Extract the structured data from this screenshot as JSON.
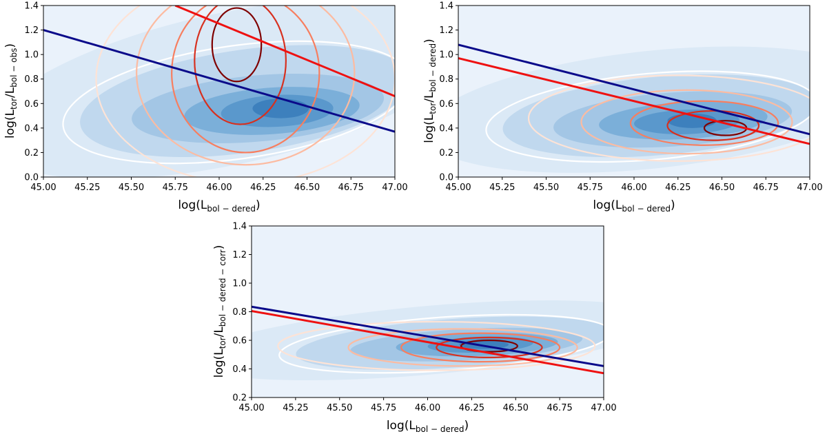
{
  "chart_data": [
    {
      "type": "contour",
      "panel": "top-left",
      "xlabel": {
        "main": "log(L",
        "sub": "bol − dered",
        "close": ")"
      },
      "ylabel": {
        "main": "log(L",
        "sub1": "tor",
        "mid": "/L",
        "sub2": "bol − obs",
        "close": ")"
      },
      "xlim": [
        45.0,
        47.0
      ],
      "ylim": [
        0.0,
        1.4
      ],
      "xticks": [
        "45.00",
        "45.25",
        "45.50",
        "45.75",
        "46.00",
        "46.25",
        "46.50",
        "46.75",
        "47.00"
      ],
      "yticks": [
        "0.0",
        "0.2",
        "0.4",
        "0.6",
        "0.8",
        "1.0",
        "1.2",
        "1.4"
      ],
      "series": [
        {
          "name": "blue fit line",
          "color": "#0a0a8a",
          "x": [
            45.0,
            47.0
          ],
          "y": [
            1.2,
            0.37
          ]
        },
        {
          "name": "red fit line",
          "color": "#ee1111",
          "x": [
            45.75,
            47.0
          ],
          "y": [
            1.4,
            0.66
          ]
        }
      ],
      "blue_density_center": [
        46.35,
        0.55
      ],
      "red_density_peak": [
        46.1,
        1.15
      ]
    },
    {
      "type": "contour",
      "panel": "top-right",
      "xlabel": {
        "main": "log(L",
        "sub": "bol − dered",
        "close": ")"
      },
      "ylabel": {
        "main": "log(L",
        "sub1": "tor",
        "mid": "/L",
        "sub2": "bol − dered",
        "close": ")"
      },
      "xlim": [
        45.0,
        47.0
      ],
      "ylim": [
        0.0,
        1.4
      ],
      "xticks": [
        "45.00",
        "45.25",
        "45.50",
        "45.75",
        "46.00",
        "46.25",
        "46.50",
        "46.75",
        "47.00"
      ],
      "yticks": [
        "0.0",
        "0.2",
        "0.4",
        "0.6",
        "0.8",
        "1.0",
        "1.2",
        "1.4"
      ],
      "series": [
        {
          "name": "blue fit line",
          "color": "#0a0a8a",
          "x": [
            45.0,
            47.0
          ],
          "y": [
            1.08,
            0.35
          ]
        },
        {
          "name": "red fit line",
          "color": "#ee1111",
          "x": [
            45.0,
            47.0
          ],
          "y": [
            0.97,
            0.27
          ]
        }
      ],
      "blue_density_center": [
        46.3,
        0.45
      ],
      "red_density_peak": [
        46.52,
        0.4
      ]
    },
    {
      "type": "contour",
      "panel": "bottom-center",
      "xlabel": {
        "main": "log(L",
        "sub": "bol − dered",
        "close": ")"
      },
      "ylabel": {
        "main": "log(L",
        "sub1": "tor",
        "mid": "/L",
        "sub2": "bol − dered − corr",
        "close": ")"
      },
      "xlim": [
        45.0,
        47.0
      ],
      "ylim": [
        0.2,
        1.4
      ],
      "xticks": [
        "45.00",
        "45.25",
        "45.50",
        "45.75",
        "46.00",
        "46.25",
        "46.50",
        "46.75",
        "47.00"
      ],
      "yticks": [
        "0.2",
        "0.4",
        "0.6",
        "0.8",
        "1.0",
        "1.2",
        "1.4"
      ],
      "series": [
        {
          "name": "blue fit line",
          "color": "#0a0a8a",
          "x": [
            45.0,
            47.0
          ],
          "y": [
            0.835,
            0.42
          ]
        },
        {
          "name": "red fit line",
          "color": "#ee1111",
          "x": [
            45.0,
            47.0
          ],
          "y": [
            0.805,
            0.37
          ]
        }
      ],
      "blue_density_center": [
        46.3,
        0.56
      ],
      "red_density_peak": [
        46.35,
        0.56
      ]
    }
  ]
}
